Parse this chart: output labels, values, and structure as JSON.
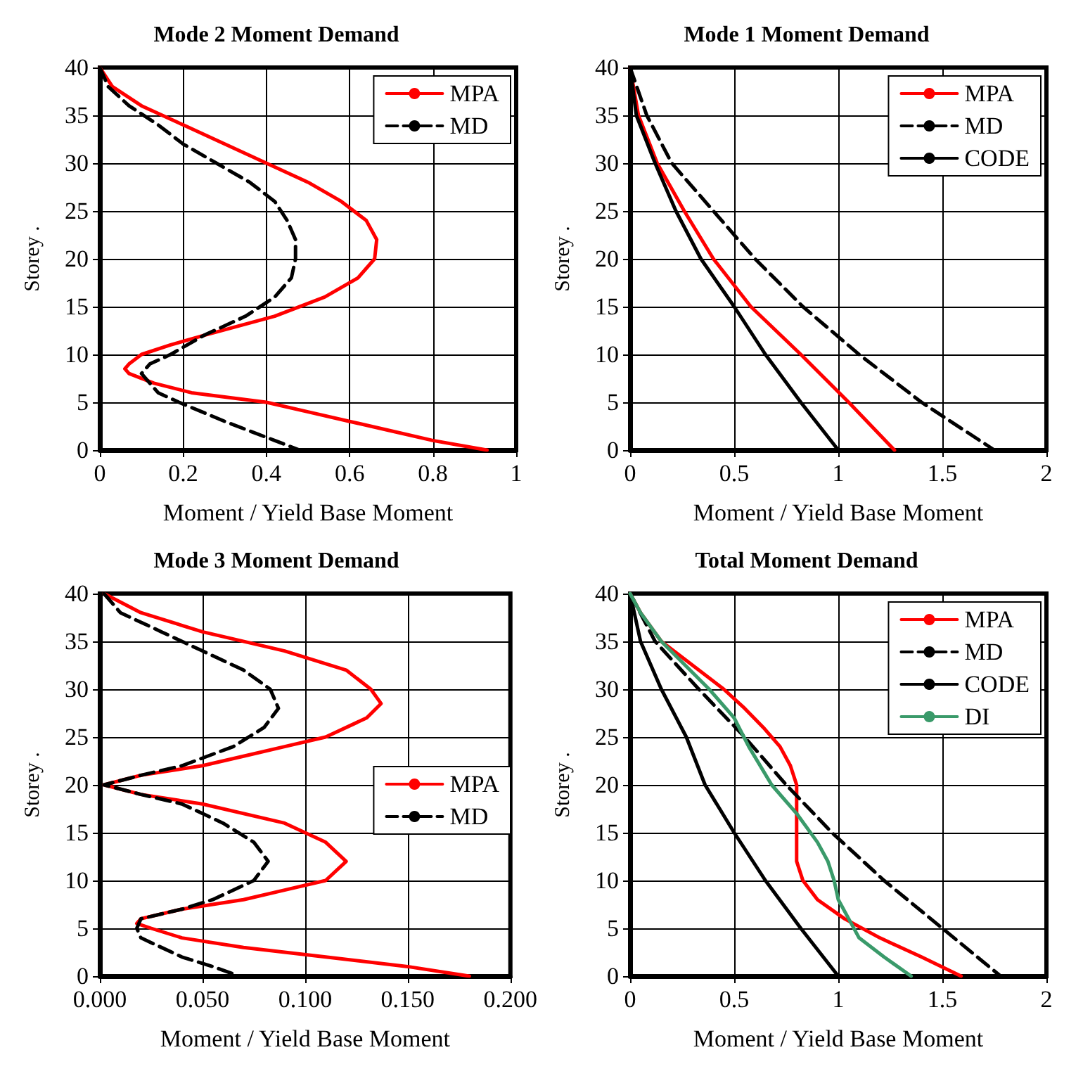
{
  "chart_data": [
    {
      "type": "line",
      "title": "Mode 2 Moment Demand",
      "xlabel": "Moment / Yield Base Moment",
      "ylabel": "Storey .",
      "xlim": [
        0,
        1
      ],
      "ylim": [
        0,
        40
      ],
      "xticks": [
        0,
        0.2,
        0.4,
        0.6,
        0.8,
        1
      ],
      "yticks": [
        0,
        5,
        10,
        15,
        20,
        25,
        30,
        35,
        40
      ],
      "grid": true,
      "legend": "top right",
      "marker": "none",
      "series": [
        {
          "name": "MPA",
          "color": "#ff0000",
          "line_style": "solid",
          "x": [
            0,
            0.03,
            0.1,
            0.2,
            0.3,
            0.4,
            0.5,
            0.58,
            0.64,
            0.665,
            0.66,
            0.62,
            0.54,
            0.42,
            0.25,
            0.17,
            0.1,
            0.07,
            0.06,
            0.07,
            0.13,
            0.22,
            0.4,
            0.5,
            0.6,
            0.7,
            0.8,
            0.93
          ],
          "values": [
            40,
            38,
            36,
            34,
            32,
            30,
            28,
            26,
            24,
            22,
            20,
            18,
            16,
            14,
            12,
            11,
            10,
            9,
            8.5,
            8,
            7,
            6,
            5,
            4,
            3,
            2,
            1,
            0
          ]
        },
        {
          "name": "MD",
          "color": "#000000",
          "line_style": "dashed",
          "x": [
            0,
            0.02,
            0.07,
            0.14,
            0.2,
            0.28,
            0.36,
            0.42,
            0.45,
            0.47,
            0.47,
            0.46,
            0.42,
            0.35,
            0.25,
            0.17,
            0.12,
            0.1,
            0.12,
            0.14,
            0.19,
            0.3,
            0.42,
            0.48
          ],
          "values": [
            40,
            38,
            36,
            34,
            32,
            30,
            28,
            26,
            24,
            22,
            20,
            18,
            16,
            14,
            12,
            10,
            9,
            8,
            7,
            6,
            5,
            3,
            1,
            0
          ]
        }
      ]
    },
    {
      "type": "line",
      "title": "Mode 1 Moment Demand",
      "xlabel": "Moment / Yield Base Moment",
      "ylabel": "Storey .",
      "xlim": [
        0,
        2
      ],
      "ylim": [
        0,
        40
      ],
      "xticks": [
        0,
        0.5,
        1,
        1.5,
        2
      ],
      "yticks": [
        0,
        5,
        10,
        15,
        20,
        25,
        30,
        35,
        40
      ],
      "grid": true,
      "legend": "top right",
      "marker": "none",
      "series": [
        {
          "name": "MPA",
          "color": "#ff0000",
          "line_style": "solid",
          "x": [
            0,
            0.04,
            0.13,
            0.26,
            0.4,
            0.58,
            0.82,
            1.05,
            1.27
          ],
          "values": [
            40,
            35,
            30,
            25,
            20,
            15,
            10,
            5,
            0
          ]
        },
        {
          "name": "MD",
          "color": "#000000",
          "line_style": "dashed",
          "x": [
            0,
            0.08,
            0.2,
            0.4,
            0.6,
            0.83,
            1.1,
            1.4,
            1.75
          ],
          "values": [
            40,
            35,
            30,
            25,
            20,
            15,
            10,
            5,
            0
          ]
        },
        {
          "name": "CODE",
          "color": "#000000",
          "line_style": "solid",
          "x": [
            0,
            0.03,
            0.12,
            0.22,
            0.34,
            0.5,
            0.65,
            0.82,
            1
          ],
          "values": [
            40,
            35,
            30,
            25,
            20,
            15,
            10,
            5,
            0
          ]
        }
      ]
    },
    {
      "type": "line",
      "title": "Mode 3 Moment Demand",
      "xlabel": "Moment / Yield Base Moment",
      "ylabel": "Storey .",
      "xlim": [
        0,
        0.2
      ],
      "ylim": [
        0,
        40
      ],
      "xticks": [
        {
          "value": 0,
          "label": "0.000"
        },
        {
          "value": 0.05,
          "label": "0.050"
        },
        {
          "value": 0.1,
          "label": "0.100"
        },
        {
          "value": 0.15,
          "label": "0.150"
        },
        {
          "value": 0.2,
          "label": "0.200"
        }
      ],
      "yticks": [
        0,
        5,
        10,
        15,
        20,
        25,
        30,
        35,
        40
      ],
      "grid": true,
      "legend": "right",
      "marker": "none",
      "series": [
        {
          "name": "MPA",
          "color": "#ff0000",
          "line_style": "solid",
          "x": [
            0.002,
            0.02,
            0.05,
            0.09,
            0.12,
            0.132,
            0.137,
            0.13,
            0.11,
            0.09,
            0.07,
            0.05,
            0.02,
            0.002,
            0.02,
            0.05,
            0.09,
            0.11,
            0.12,
            0.11,
            0.09,
            0.07,
            0.04,
            0.02,
            0.018,
            0.025,
            0.04,
            0.07,
            0.11,
            0.15,
            0.18
          ],
          "values": [
            40,
            38,
            36,
            34,
            32,
            30,
            28.5,
            27,
            25,
            24,
            23,
            22,
            21,
            20,
            19,
            18,
            16,
            14,
            12,
            10,
            9,
            8,
            7,
            6,
            5.5,
            5,
            4,
            3,
            2,
            1,
            0
          ]
        },
        {
          "name": "MD",
          "color": "#000000",
          "line_style": "dashed",
          "x": [
            0.002,
            0.01,
            0.03,
            0.05,
            0.07,
            0.083,
            0.087,
            0.08,
            0.065,
            0.04,
            0.02,
            0.002,
            0.02,
            0.04,
            0.06,
            0.075,
            0.082,
            0.075,
            0.055,
            0.04,
            0.02,
            0.018,
            0.02,
            0.04,
            0.055,
            0.068
          ],
          "values": [
            40,
            38,
            36,
            34,
            32,
            30,
            28,
            26,
            24,
            22,
            21,
            20,
            19,
            18,
            16,
            14,
            12,
            10,
            8,
            7,
            6,
            5,
            4,
            2,
            1,
            0
          ]
        }
      ]
    },
    {
      "type": "line",
      "title": "Total Moment Demand",
      "xlabel": "Moment / Yield Base Moment",
      "ylabel": "Storey .",
      "xlim": [
        0,
        2
      ],
      "ylim": [
        0,
        40
      ],
      "xticks": [
        0,
        0.5,
        1,
        1.5,
        2
      ],
      "yticks": [
        0,
        5,
        10,
        15,
        20,
        25,
        30,
        35,
        40
      ],
      "grid": true,
      "legend": "top right",
      "marker": "none",
      "series": [
        {
          "name": "MPA",
          "color": "#ff0000",
          "line_style": "solid",
          "x": [
            0,
            0.05,
            0.15,
            0.33,
            0.45,
            0.55,
            0.64,
            0.72,
            0.77,
            0.8,
            0.8,
            0.8,
            0.8,
            0.83,
            0.9,
            1.03,
            1.2,
            1.4,
            1.59
          ],
          "values": [
            40,
            38,
            35,
            32,
            30,
            28,
            26,
            24,
            22,
            20,
            18,
            15,
            12,
            10,
            8,
            6,
            4,
            2,
            0
          ]
        },
        {
          "name": "MD",
          "color": "#000000",
          "line_style": "dashed",
          "x": [
            0,
            0.12,
            0.33,
            0.55,
            0.75,
            0.97,
            1.22,
            1.5,
            1.78
          ],
          "values": [
            40,
            35,
            30,
            25,
            20,
            15,
            10,
            5,
            0
          ]
        },
        {
          "name": "CODE",
          "color": "#000000",
          "line_style": "solid",
          "x": [
            0,
            0.05,
            0.15,
            0.27,
            0.36,
            0.5,
            0.65,
            0.82,
            1
          ],
          "values": [
            40,
            35,
            30,
            25,
            20,
            15,
            10,
            5,
            0
          ]
        },
        {
          "name": "DI",
          "color": "#3a9a6a",
          "line_style": "solid",
          "x": [
            0,
            0.05,
            0.15,
            0.38,
            0.5,
            0.57,
            0.68,
            0.8,
            0.9,
            0.95,
            0.98,
            1,
            1.05,
            1.1,
            1.22,
            1.35
          ],
          "values": [
            40,
            38,
            35,
            30,
            27,
            24,
            20,
            17,
            14,
            12,
            10,
            8,
            6,
            4,
            2,
            0
          ]
        }
      ]
    }
  ]
}
